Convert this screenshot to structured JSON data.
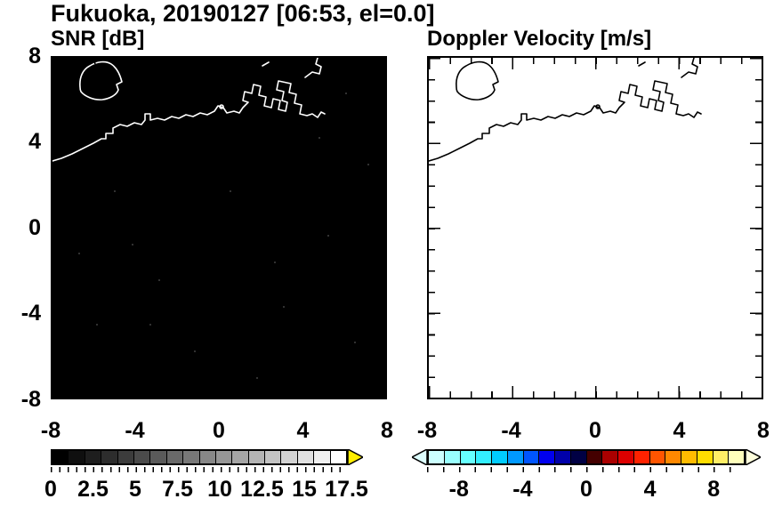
{
  "figure": {
    "title": "Fukuoka, 20190127 [06:53, el=0.0]"
  },
  "panels": {
    "snr": {
      "title": "SNR [dB]",
      "bg": "#000000",
      "coast_color": "#ffffff"
    },
    "velocity": {
      "title": "Doppler Velocity [m/s]",
      "bg": "#ffffff",
      "coast_color": "#000000"
    }
  },
  "axes": {
    "x_tick_labels": [
      "-8",
      "-4",
      "0",
      "4",
      "8"
    ],
    "y_tick_labels": [
      "8",
      "4",
      "0",
      "-4",
      "-8"
    ],
    "x_range": [
      -8,
      8
    ],
    "y_range": [
      -8,
      8
    ]
  },
  "colorbars": {
    "snr": {
      "tick_labels": [
        "0",
        "2.5",
        "5",
        "7.5",
        "10",
        "12.5",
        "15",
        "17.5"
      ],
      "min": 0,
      "max": 17.5,
      "step": 2.5,
      "colors": [
        "#000000",
        "#0f0f0f",
        "#1e1e1e",
        "#2d2d2d",
        "#3c3c3c",
        "#4b4b4b",
        "#5a5a5a",
        "#696969",
        "#787878",
        "#878787",
        "#969696",
        "#a5a5a5",
        "#b4b4b4",
        "#c3c3c3",
        "#d2d2d2",
        "#e1e1e1",
        "#f0f0f0",
        "#ffffff"
      ],
      "arrow_color": "#ffee00"
    },
    "velocity": {
      "tick_labels": [
        "-8",
        "-4",
        "0",
        "4",
        "8"
      ],
      "min": -10,
      "max": 10,
      "step": 4,
      "colors": [
        "#ccffff",
        "#99ffff",
        "#66ffff",
        "#33eeff",
        "#00ccff",
        "#0099ff",
        "#0055ff",
        "#0000ee",
        "#0000aa",
        "#000044",
        "#440000",
        "#aa0000",
        "#dd0000",
        "#ff2200",
        "#ff5500",
        "#ff8800",
        "#ffbb00",
        "#ffdd00",
        "#ffee66",
        "#ffffbb"
      ],
      "left_arrow_color": "#ddffff",
      "right_arrow_color": "#ffffdd"
    }
  },
  "chart_data": [
    {
      "type": "heatmap",
      "suptitle": "Fukuoka, 20190127 [06:53, el=0.0]",
      "title": "SNR [dB]",
      "xlabel": "",
      "ylabel": "",
      "x_range": [
        -8,
        8
      ],
      "y_range": [
        -8,
        8
      ],
      "x_ticks": [
        -8,
        -4,
        0,
        4,
        8
      ],
      "y_ticks": [
        8,
        4,
        0,
        -4,
        -8
      ],
      "colorbar": {
        "min": 0,
        "max": 17.5,
        "ticks": [
          0,
          2.5,
          5,
          7.5,
          10,
          12.5,
          15,
          17.5
        ],
        "scale": "grayscale black(0) to white(17.5), yellow over-range arrow"
      },
      "field": "near-uniform 0 dB background (black) with sparse faint noise speckles; white coastline outline of the Fukuoka bay area drawn in the upper half",
      "grid": false,
      "legend": false
    },
    {
      "type": "heatmap",
      "title": "Doppler Velocity [m/s]",
      "xlabel": "",
      "ylabel": "",
      "x_range": [
        -8,
        8
      ],
      "y_range": [
        -8,
        8
      ],
      "x_ticks": [
        -8,
        -4,
        0,
        4,
        8
      ],
      "y_ticks": [
        8,
        4,
        0,
        -4,
        -8
      ],
      "colorbar": {
        "min": -10,
        "max": 10,
        "ticks": [
          -8,
          -4,
          0,
          4,
          8
        ],
        "scale": "diverging cyan→blue→near-black(0)→red→orange→yellow, arrows both ends"
      },
      "field": "no detected echoes (blank white field); black coastline outline of the Fukuoka bay area drawn in the upper half",
      "grid": false,
      "legend": false
    }
  ]
}
